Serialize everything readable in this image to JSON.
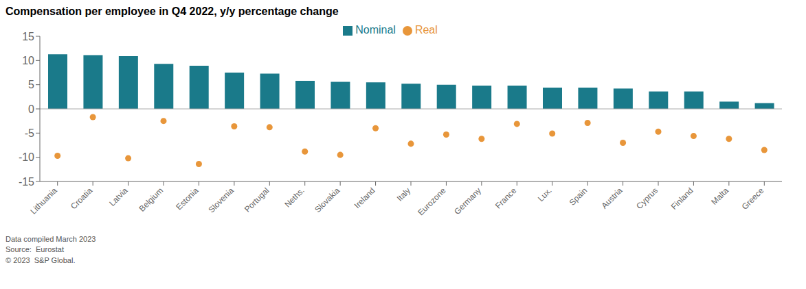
{
  "chart_data": {
    "type": "bar",
    "title": "Compensation per employee in Q4 2022, y/y percentage change",
    "categories": [
      "Lithuania",
      "Croatia",
      "Latvia",
      "Belgium",
      "Estonia",
      "Slovenia",
      "Portugal",
      "Neths.",
      "Slovakia",
      "Ireland",
      "Italy",
      "Eurozone",
      "Germany",
      "France",
      "Lux.",
      "Spain",
      "Austria",
      "Cyprus",
      "Finland",
      "Malta",
      "Greece"
    ],
    "series": [
      {
        "name": "Nominal",
        "type": "bar",
        "color": "#1a7a8a",
        "values": [
          11.3,
          11.1,
          10.9,
          9.3,
          8.9,
          7.5,
          7.3,
          5.8,
          5.6,
          5.5,
          5.2,
          5.0,
          4.8,
          4.8,
          4.4,
          4.4,
          4.2,
          3.6,
          3.6,
          1.5,
          1.2
        ]
      },
      {
        "name": "Real",
        "type": "scatter",
        "color": "#e8963a",
        "marker": "circle",
        "values": [
          -9.7,
          -1.7,
          -10.2,
          -2.5,
          -11.4,
          -3.6,
          -3.8,
          -8.8,
          -9.5,
          -4.0,
          -7.2,
          -5.3,
          -6.2,
          -3.1,
          -5.1,
          -2.9,
          -7.0,
          -4.7,
          -5.6,
          -6.2,
          -8.5
        ]
      }
    ],
    "ylim": [
      -15,
      15
    ],
    "yticks": [
      -15,
      -10,
      -5,
      0,
      5,
      10,
      15
    ],
    "grid": false,
    "legend": "top",
    "annotations": [
      "Data compiled March 2023",
      "Source:  Eurostat",
      "© 2023  S&P Global."
    ]
  }
}
